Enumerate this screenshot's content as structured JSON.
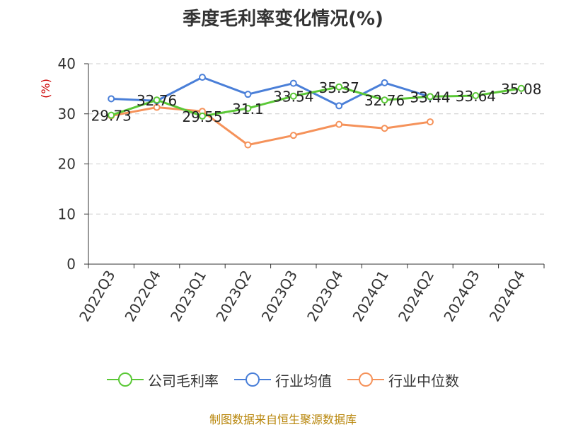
{
  "chart_data": {
    "type": "line",
    "title": "季度毛利率变化情况(%)",
    "ylabel": "(%)",
    "xlabel": "",
    "ylim": [
      0,
      40
    ],
    "yticks": [
      0,
      10,
      20,
      30,
      40
    ],
    "grid": true,
    "legend_position": "bottom",
    "categories": [
      "2022Q3",
      "2022Q4",
      "2023Q1",
      "2023Q2",
      "2023Q3",
      "2023Q4",
      "2024Q1",
      "2024Q2",
      "2024Q3",
      "2024Q4"
    ],
    "series": [
      {
        "name": "公司毛利率",
        "color": "#5ac836",
        "values": [
          29.73,
          32.76,
          29.55,
          31.1,
          33.54,
          35.37,
          32.76,
          33.44,
          33.64,
          35.08
        ],
        "labels": [
          "29.73",
          "32.76",
          "29.55",
          "31.1",
          "33.54",
          "35.37",
          "32.76",
          "33.44",
          "33.64",
          "35.08"
        ]
      },
      {
        "name": "行业均值",
        "color": "#4a7fd8",
        "values": [
          33.0,
          32.6,
          37.3,
          33.9,
          36.1,
          31.6,
          36.2,
          33.4,
          null,
          null
        ]
      },
      {
        "name": "行业中位数",
        "color": "#f5925a",
        "values": [
          29.6,
          31.3,
          30.5,
          23.8,
          25.7,
          27.9,
          27.1,
          28.4,
          null,
          null
        ]
      }
    ]
  },
  "source_text": "制图数据来自恒生聚源数据库"
}
